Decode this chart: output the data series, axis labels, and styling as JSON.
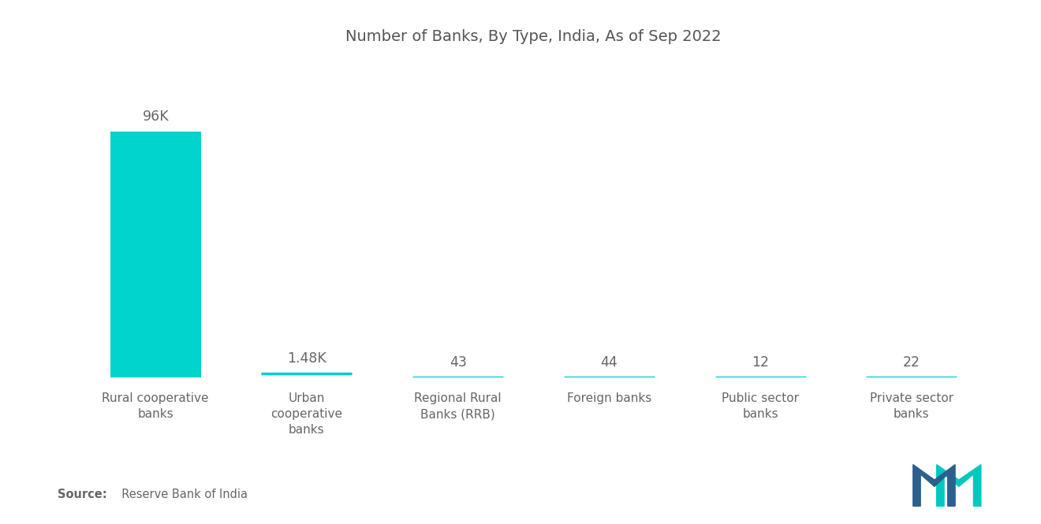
{
  "title": "Number of Banks, By Type, India, As of Sep 2022",
  "categories": [
    "Rural cooperative\nbanks",
    "Urban\ncooperative\nbanks",
    "Regional Rural\nBanks (RRB)",
    "Foreign banks",
    "Public sector\nbanks",
    "Private sector\nbanks"
  ],
  "values": [
    96000,
    1480,
    43,
    44,
    12,
    22
  ],
  "labels": [
    "96K",
    "1.48K",
    "43",
    "44",
    "12",
    "22"
  ],
  "bar_color_main": "#00D4CC",
  "bar_color_line": "#00CCCC",
  "source_bold": "Source:",
  "source_rest": "  Reserve Bank of India",
  "background_color": "#ffffff",
  "title_color": "#555555",
  "label_color": "#666666",
  "bar_width": 0.6,
  "ylim_factor": 1.28,
  "logo_blue": "#2B5F8E",
  "logo_teal": "#00C8BE"
}
